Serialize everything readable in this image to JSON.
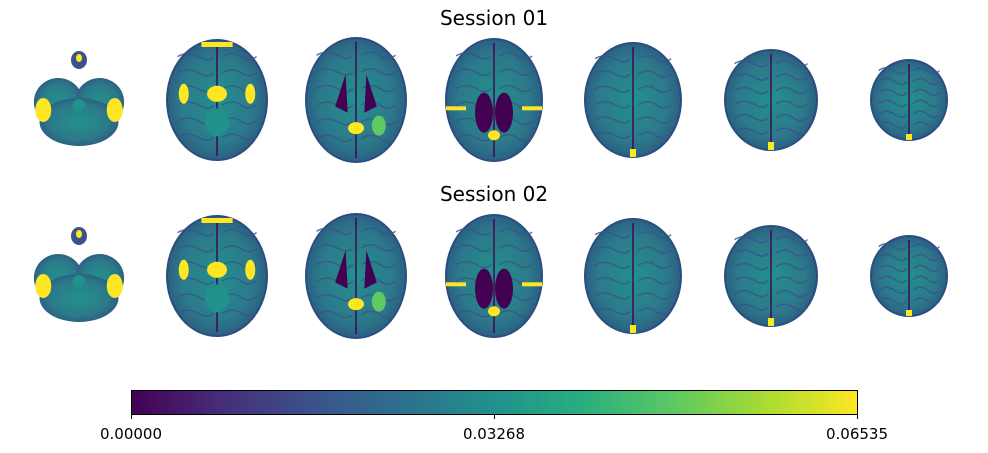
{
  "figure": {
    "rows": [
      {
        "title": "Session 01"
      },
      {
        "title": "Session 02"
      }
    ],
    "slices_per_row": 7,
    "colormap": "viridis",
    "colorbar": {
      "min_label": "0.00000",
      "mid_label": "0.03268",
      "max_label": "0.06535",
      "min": 0.0,
      "mid": 0.03268,
      "max": 0.06535
    },
    "colors": {
      "viridis_low": "#440154",
      "viridis_q1": "#3b528b",
      "viridis_mid": "#21918c",
      "viridis_q3": "#5ec962",
      "viridis_high": "#fde725",
      "tissue": "#2c7a8a",
      "tissue_dark": "#2a4e7e"
    }
  }
}
